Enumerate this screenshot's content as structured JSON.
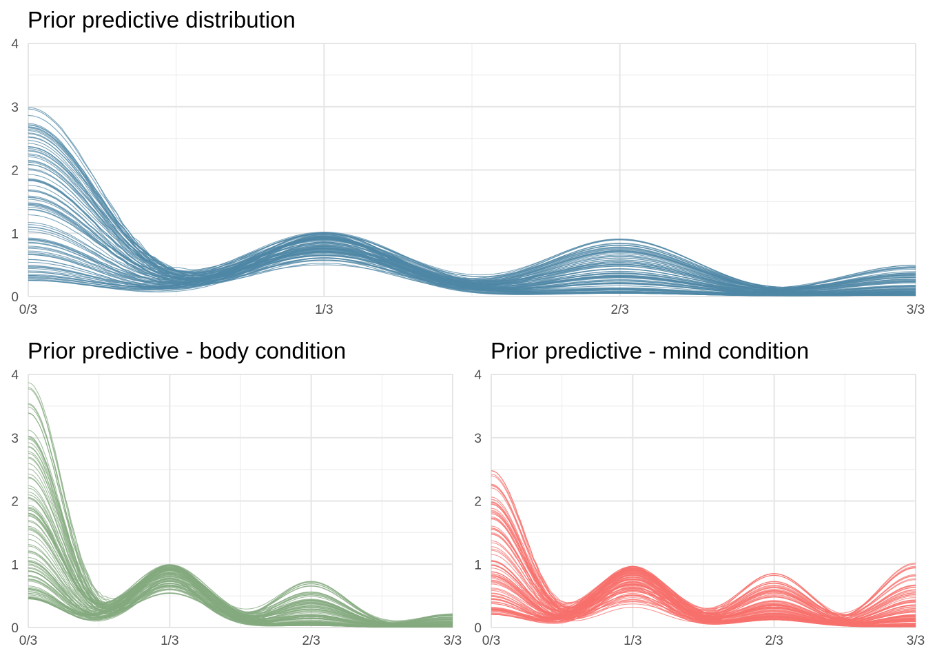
{
  "chart_data": [
    {
      "type": "line",
      "title": "Prior predictive distribution",
      "xlabel": "",
      "ylabel": "",
      "x_ticks": [
        "0/3",
        "1/3",
        "2/3",
        "3/3"
      ],
      "y_ticks": [
        "0",
        "1",
        "2",
        "3",
        "4"
      ],
      "xlim": [
        0,
        1
      ],
      "ylim": [
        0,
        4
      ],
      "grid": true,
      "legend": "none",
      "color": "#4f87a6",
      "n_draws": 100,
      "peaks": {
        "x0": [
          0.25,
          3.05
        ],
        "x1": [
          0.45,
          1.02
        ],
        "x2": [
          0.05,
          0.93
        ],
        "x3": [
          0.02,
          0.5
        ]
      }
    },
    {
      "type": "line",
      "title": "Prior predictive - body condition",
      "xlabel": "",
      "ylabel": "",
      "x_ticks": [
        "0/3",
        "1/3",
        "2/3",
        "3/3"
      ],
      "y_ticks": [
        "0",
        "1",
        "2",
        "3",
        "4"
      ],
      "xlim": [
        0,
        1
      ],
      "ylim": [
        0,
        4
      ],
      "grid": true,
      "legend": "none",
      "color": "#84aa7f",
      "n_draws": 100,
      "peaks": {
        "x0": [
          0.45,
          4.0
        ],
        "x1": [
          0.45,
          1.0
        ],
        "x2": [
          0.03,
          0.73
        ],
        "x3": [
          0.01,
          0.22
        ]
      }
    },
    {
      "type": "line",
      "title": "Prior predictive - mind condition",
      "xlabel": "",
      "ylabel": "",
      "x_ticks": [
        "0/3",
        "1/3",
        "2/3",
        "3/3"
      ],
      "y_ticks": [
        "0",
        "1",
        "2",
        "3",
        "4"
      ],
      "xlim": [
        0,
        1
      ],
      "ylim": [
        0,
        4
      ],
      "grid": true,
      "legend": "none",
      "color": "#f7706c",
      "n_draws": 100,
      "peaks": {
        "x0": [
          0.2,
          2.48
        ],
        "x1": [
          0.25,
          0.97
        ],
        "x2": [
          0.12,
          0.88
        ],
        "x3": [
          0.01,
          1.02
        ]
      }
    }
  ]
}
